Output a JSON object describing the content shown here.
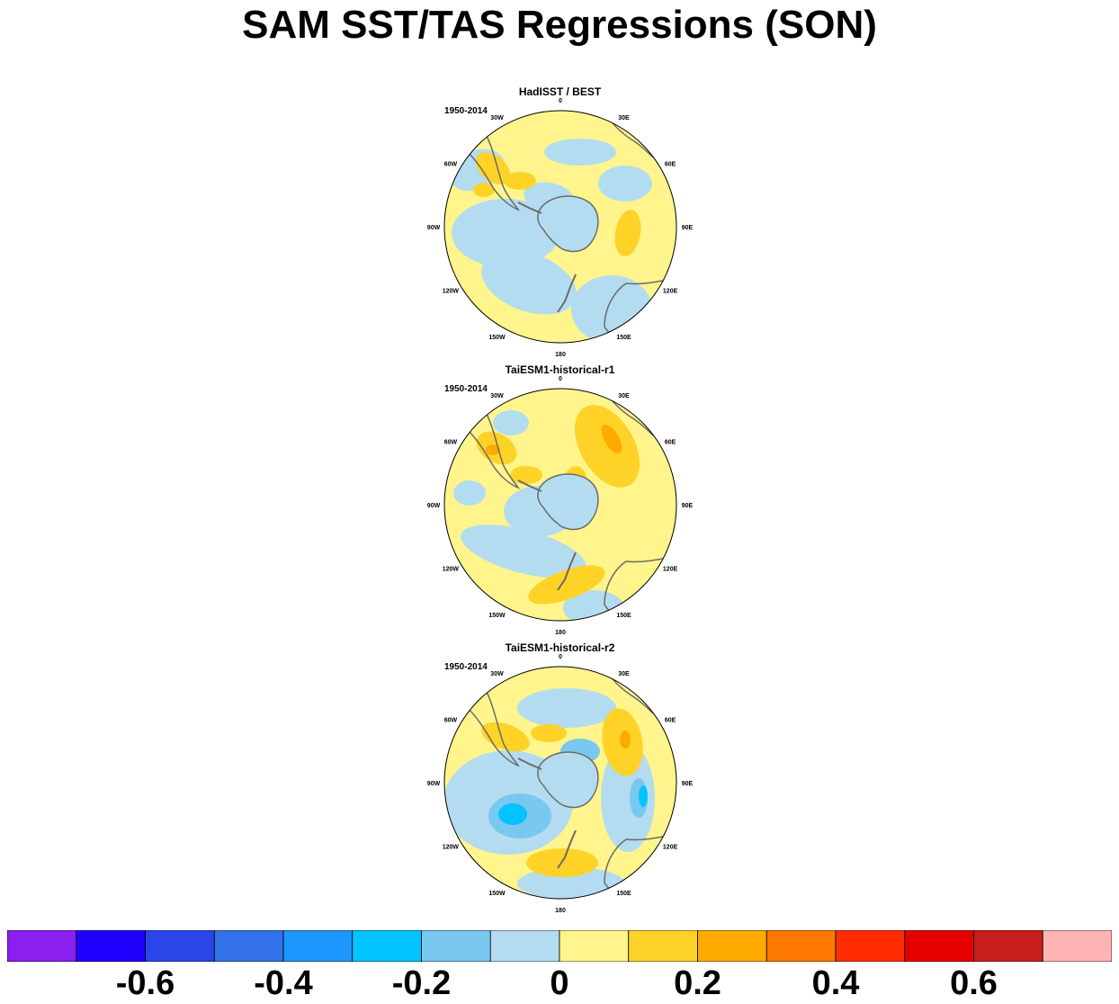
{
  "title": "SAM SST/TAS Regressions (SON)",
  "panels": [
    {
      "title": "HadISST / BEST",
      "period": "1950-2014",
      "variant": 0
    },
    {
      "title": "TaiESM1-historical-r1",
      "period": "1950-2014",
      "variant": 1
    },
    {
      "title": "TaiESM1-historical-r2",
      "period": "1950-2014",
      "variant": 2
    }
  ],
  "lon_labels": [
    {
      "text": "0",
      "angle": 0
    },
    {
      "text": "30E",
      "angle": 30
    },
    {
      "text": "60E",
      "angle": 60
    },
    {
      "text": "90E",
      "angle": 90
    },
    {
      "text": "120E",
      "angle": 120
    },
    {
      "text": "150E",
      "angle": 150
    },
    {
      "text": "180",
      "angle": 180
    },
    {
      "text": "150W",
      "angle": 210
    },
    {
      "text": "120W",
      "angle": 240
    },
    {
      "text": "90W",
      "angle": 270
    },
    {
      "text": "60W",
      "angle": 300
    },
    {
      "text": "30W",
      "angle": 330
    }
  ],
  "colorbar": {
    "colors": [
      "#8a1ff0",
      "#1e00ff",
      "#2a46e8",
      "#3371e8",
      "#1e96ff",
      "#00c3ff",
      "#78c8f0",
      "#b4dcf0",
      "#fff58c",
      "#ffd228",
      "#ffaa00",
      "#ff7800",
      "#ff2d00",
      "#e60000",
      "#c81e1e",
      "#ffb4b4"
    ],
    "tick_labels": [
      "-0.6",
      "-0.4",
      "-0.2",
      "0",
      "0.2",
      "0.4",
      "0.6"
    ]
  }
}
